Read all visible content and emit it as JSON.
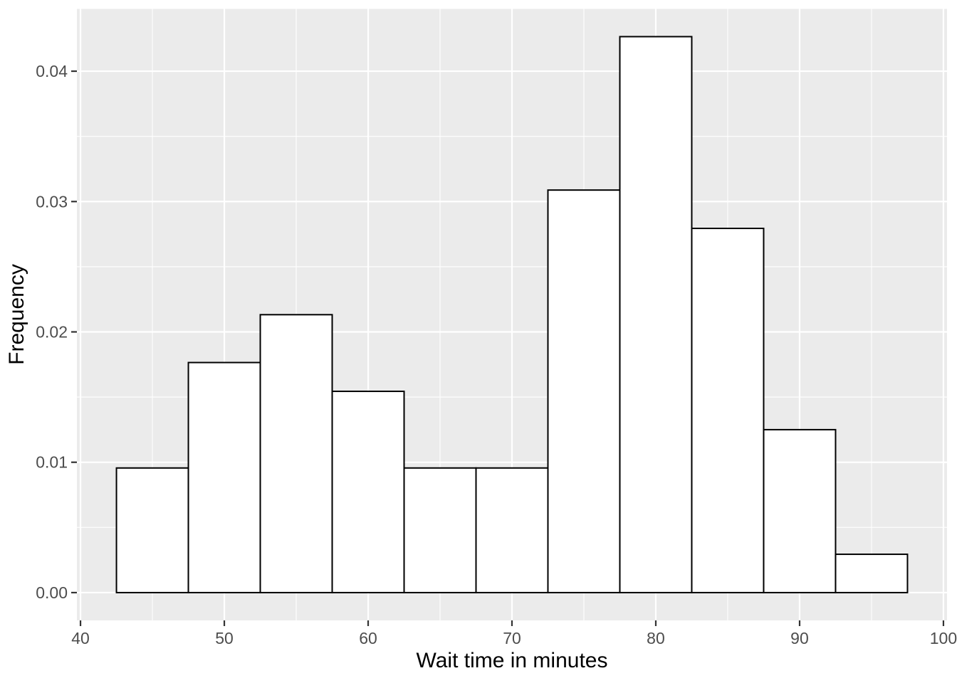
{
  "chart_data": {
    "type": "bar",
    "subtype": "histogram",
    "title": "",
    "xlabel": "Wait time in minutes",
    "ylabel": "Frequency",
    "bins": [
      {
        "from": 42.5,
        "to": 47.5,
        "density": 0.00956
      },
      {
        "from": 47.5,
        "to": 52.5,
        "density": 0.01765
      },
      {
        "from": 52.5,
        "to": 57.5,
        "density": 0.02132
      },
      {
        "from": 57.5,
        "to": 62.5,
        "density": 0.01544
      },
      {
        "from": 62.5,
        "to": 67.5,
        "density": 0.00956
      },
      {
        "from": 67.5,
        "to": 72.5,
        "density": 0.00956
      },
      {
        "from": 72.5,
        "to": 77.5,
        "density": 0.03088
      },
      {
        "from": 77.5,
        "to": 82.5,
        "density": 0.04265
      },
      {
        "from": 82.5,
        "to": 87.5,
        "density": 0.02794
      },
      {
        "from": 87.5,
        "to": 92.5,
        "density": 0.0125
      },
      {
        "from": 92.5,
        "to": 97.5,
        "density": 0.00294
      }
    ],
    "x_ticks": {
      "values": [
        40,
        50,
        60,
        70,
        80,
        90,
        100
      ],
      "labels": [
        "40",
        "50",
        "60",
        "70",
        "80",
        "90",
        "100"
      ]
    },
    "y_ticks": {
      "values": [
        0,
        0.01,
        0.02,
        0.03,
        0.04
      ],
      "labels": [
        "0.00",
        "0.01",
        "0.02",
        "0.03",
        "0.04"
      ]
    },
    "x_minor_ticks": [
      45,
      55,
      65,
      75,
      85,
      95
    ],
    "y_minor_ticks": [
      0.005,
      0.015,
      0.025,
      0.035
    ],
    "xlim": [
      39.75,
      100.25
    ],
    "ylim": [
      -0.002132,
      0.044779
    ],
    "grid": true,
    "legend": false,
    "colors": {
      "panel_background": "#EBEBEB",
      "grid": "#FFFFFF",
      "bar_fill": "#FFFFFF",
      "bar_stroke": "#000000",
      "tick_label": "#4D4D4D",
      "tick_mark": "#333333",
      "axis_title": "#000000",
      "figure_background": "#FFFFFF"
    }
  }
}
